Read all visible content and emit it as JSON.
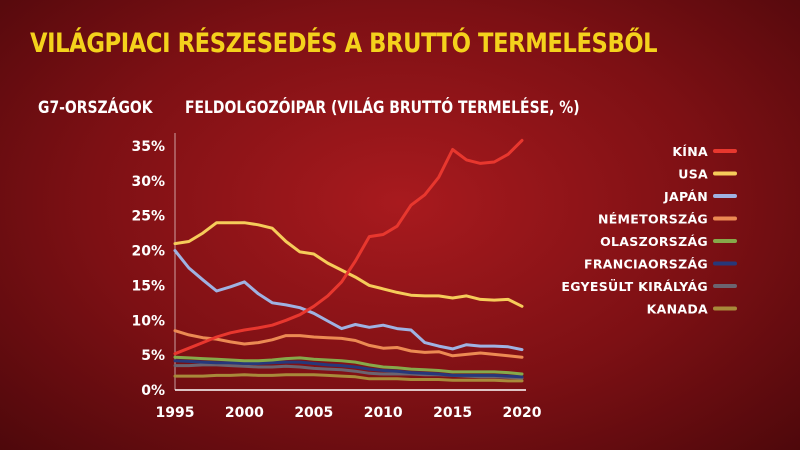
{
  "header": {
    "title": "VILÁGPIACI RÉSZESEDÉS A BRUTTÓ TERMELÉSBŐL",
    "subtitle_left": "G7-ORSZÁGOK",
    "subtitle_right": "FELDOLGOZÓIPAR (VILÁG BRUTTÓ TERMELÉSE, %)"
  },
  "chart_data": {
    "type": "line",
    "xlim": [
      1995,
      2020
    ],
    "ylim": [
      0,
      36
    ],
    "x_ticks": [
      1995,
      2000,
      2005,
      2010,
      2015,
      2020
    ],
    "y_ticks": [
      0,
      5,
      10,
      15,
      20,
      25,
      30,
      35
    ],
    "y_tick_suffix": "%",
    "legend_position": "right",
    "series": [
      {
        "name": "KÍNA",
        "color": "#e8372e",
        "x": [
          1995,
          1996,
          1997,
          1998,
          1999,
          2000,
          2001,
          2002,
          2003,
          2004,
          2005,
          2006,
          2007,
          2008,
          2009,
          2010,
          2011,
          2012,
          2013,
          2014,
          2015,
          2016,
          2017,
          2018,
          2019,
          2020
        ],
        "y": [
          5.2,
          6.0,
          6.8,
          7.6,
          8.2,
          8.6,
          8.9,
          9.3,
          10.0,
          10.8,
          12.0,
          13.5,
          15.5,
          18.5,
          22.0,
          22.3,
          23.5,
          26.5,
          28.0,
          30.5,
          34.5,
          33.0,
          32.5,
          32.7,
          33.8,
          35.8
        ]
      },
      {
        "name": "USA",
        "color": "#f6cc5a",
        "x": [
          1995,
          1996,
          1997,
          1998,
          1999,
          2000,
          2001,
          2002,
          2003,
          2004,
          2005,
          2006,
          2007,
          2008,
          2009,
          2010,
          2011,
          2012,
          2013,
          2014,
          2015,
          2016,
          2017,
          2018,
          2019,
          2020
        ],
        "y": [
          21.0,
          21.3,
          22.5,
          24.0,
          24.0,
          24.0,
          23.7,
          23.2,
          21.3,
          19.8,
          19.5,
          18.2,
          17.2,
          16.2,
          15.0,
          14.5,
          14.0,
          13.6,
          13.5,
          13.5,
          13.2,
          13.5,
          13.0,
          12.9,
          13.0,
          12.0
        ]
      },
      {
        "name": "JAPÁN",
        "color": "#9fb2e2",
        "x": [
          1995,
          1996,
          1997,
          1998,
          1999,
          2000,
          2001,
          2002,
          2003,
          2004,
          2005,
          2006,
          2007,
          2008,
          2009,
          2010,
          2011,
          2012,
          2013,
          2014,
          2015,
          2016,
          2017,
          2018,
          2019,
          2020
        ],
        "y": [
          20.0,
          17.5,
          15.8,
          14.2,
          14.8,
          15.5,
          13.8,
          12.5,
          12.2,
          11.8,
          11.0,
          9.9,
          8.8,
          9.4,
          9.0,
          9.3,
          8.8,
          8.6,
          6.8,
          6.3,
          5.9,
          6.5,
          6.3,
          6.3,
          6.2,
          5.8
        ]
      },
      {
        "name": "NÉMETORSZÁG",
        "color": "#ec8a53",
        "x": [
          1995,
          1996,
          1997,
          1998,
          1999,
          2000,
          2001,
          2002,
          2003,
          2004,
          2005,
          2006,
          2007,
          2008,
          2009,
          2010,
          2011,
          2012,
          2013,
          2014,
          2015,
          2016,
          2017,
          2018,
          2019,
          2020
        ],
        "y": [
          8.5,
          7.9,
          7.5,
          7.3,
          6.9,
          6.6,
          6.8,
          7.2,
          7.8,
          7.8,
          7.6,
          7.5,
          7.4,
          7.1,
          6.4,
          6.0,
          6.1,
          5.6,
          5.4,
          5.5,
          4.9,
          5.1,
          5.3,
          5.1,
          4.9,
          4.7
        ]
      },
      {
        "name": "OLASZORSZÁG",
        "color": "#86a94a",
        "x": [
          1995,
          1996,
          1997,
          1998,
          1999,
          2000,
          2001,
          2002,
          2003,
          2004,
          2005,
          2006,
          2007,
          2008,
          2009,
          2010,
          2011,
          2012,
          2013,
          2014,
          2015,
          2016,
          2017,
          2018,
          2019,
          2020
        ],
        "y": [
          4.7,
          4.6,
          4.5,
          4.4,
          4.3,
          4.2,
          4.2,
          4.3,
          4.5,
          4.6,
          4.4,
          4.3,
          4.2,
          4.0,
          3.6,
          3.3,
          3.2,
          3.0,
          2.9,
          2.8,
          2.6,
          2.6,
          2.6,
          2.6,
          2.5,
          2.3
        ]
      },
      {
        "name": "FRANCIAORSZÁG",
        "color": "#27387a",
        "x": [
          1995,
          1996,
          1997,
          1998,
          1999,
          2000,
          2001,
          2002,
          2003,
          2004,
          2005,
          2006,
          2007,
          2008,
          2009,
          2010,
          2011,
          2012,
          2013,
          2014,
          2015,
          2016,
          2017,
          2018,
          2019,
          2020
        ],
        "y": [
          4.2,
          4.1,
          4.0,
          3.9,
          3.9,
          3.8,
          3.8,
          3.9,
          4.0,
          4.0,
          3.8,
          3.6,
          3.5,
          3.3,
          3.0,
          2.8,
          2.7,
          2.5,
          2.4,
          2.3,
          2.1,
          2.1,
          2.1,
          2.1,
          2.0,
          1.9
        ]
      },
      {
        "name": "EGYESÜLT KIRÁLYÁG",
        "color": "#6b6470",
        "x": [
          1995,
          1996,
          1997,
          1998,
          1999,
          2000,
          2001,
          2002,
          2003,
          2004,
          2005,
          2006,
          2007,
          2008,
          2009,
          2010,
          2011,
          2012,
          2013,
          2014,
          2015,
          2016,
          2017,
          2018,
          2019,
          2020
        ],
        "y": [
          3.5,
          3.5,
          3.6,
          3.6,
          3.5,
          3.4,
          3.3,
          3.3,
          3.4,
          3.3,
          3.1,
          3.0,
          2.9,
          2.7,
          2.4,
          2.3,
          2.3,
          2.3,
          2.2,
          2.2,
          2.1,
          2.0,
          1.9,
          1.9,
          1.8,
          1.7
        ]
      },
      {
        "name": "KANADA",
        "color": "#a88a3a",
        "x": [
          1995,
          1996,
          1997,
          1998,
          1999,
          2000,
          2001,
          2002,
          2003,
          2004,
          2005,
          2006,
          2007,
          2008,
          2009,
          2010,
          2011,
          2012,
          2013,
          2014,
          2015,
          2016,
          2017,
          2018,
          2019,
          2020
        ],
        "y": [
          2.0,
          2.0,
          2.0,
          2.1,
          2.1,
          2.2,
          2.1,
          2.1,
          2.2,
          2.2,
          2.2,
          2.1,
          2.0,
          1.9,
          1.6,
          1.6,
          1.6,
          1.5,
          1.5,
          1.5,
          1.4,
          1.4,
          1.4,
          1.4,
          1.3,
          1.3
        ]
      }
    ]
  }
}
